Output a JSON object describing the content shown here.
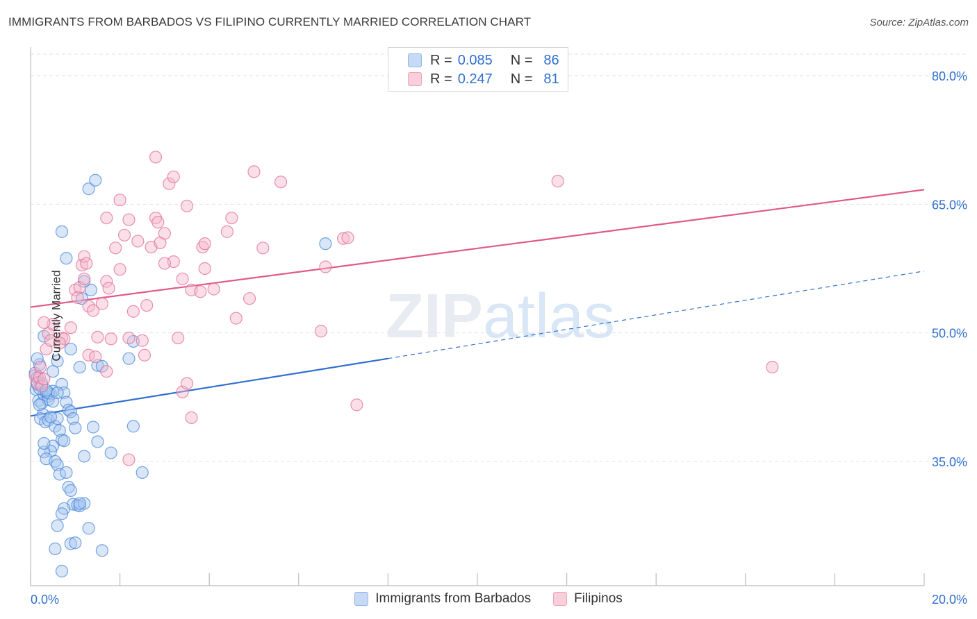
{
  "title": "IMMIGRANTS FROM BARBADOS VS FILIPINO CURRENTLY MARRIED CORRELATION CHART",
  "source": "Source: ZipAtlas.com",
  "watermark": "ZIPatlas",
  "legend_top": {
    "rows": [
      {
        "r_label": "R =",
        "r_value": "0.085",
        "n_label": "N =",
        "n_value": "86",
        "color": "#a9c8f0"
      },
      {
        "r_label": "R =",
        "r_value": "0.247",
        "n_label": "N =",
        "n_value": "81",
        "color": "#f5b8cb"
      }
    ]
  },
  "legend_bottom": [
    {
      "label": "Immigrants from Barbados",
      "color": "#a9c8f0"
    },
    {
      "label": "Filipinos",
      "color": "#f5b8cb"
    }
  ],
  "chart_data": {
    "type": "scatter",
    "title": "IMMIGRANTS FROM BARBADOS VS FILIPINO CURRENTLY MARRIED CORRELATION CHART",
    "xlabel": "",
    "ylabel": "Currently Married",
    "xlim": [
      0,
      20
    ],
    "ylim": [
      20.5,
      83
    ],
    "x_ticks": [
      "0.0%",
      "20.0%"
    ],
    "y_ticks": [
      {
        "value": 35,
        "label": "35.0%"
      },
      {
        "value": 50,
        "label": "50.0%"
      },
      {
        "value": 65,
        "label": "65.0%"
      },
      {
        "value": 80,
        "label": "80.0%"
      }
    ],
    "grid": true,
    "series": [
      {
        "name": "Immigrants from Barbados",
        "color": "#4a87d8",
        "fill": "#a9c8f0",
        "r": 0.085,
        "n": 86,
        "trend": {
          "x0": 0.0,
          "y0": 40.3,
          "x1": 8.0,
          "y1": 47.0,
          "dash_x1": 20.0,
          "dash_y1": 57.2,
          "color": "#2f6fd0"
        },
        "points": [
          [
            0.1,
            45.3
          ],
          [
            0.15,
            44.8
          ],
          [
            0.2,
            46.3
          ],
          [
            0.12,
            43.4
          ],
          [
            0.18,
            42.1
          ],
          [
            0.25,
            41.8
          ],
          [
            0.3,
            42.8
          ],
          [
            0.35,
            43.0
          ],
          [
            0.4,
            42.6
          ],
          [
            0.45,
            42.9
          ],
          [
            0.5,
            43.2
          ],
          [
            0.28,
            40.5
          ],
          [
            0.22,
            40.0
          ],
          [
            0.33,
            39.6
          ],
          [
            0.4,
            39.8
          ],
          [
            0.55,
            39.1
          ],
          [
            0.6,
            40.0
          ],
          [
            0.7,
            44.0
          ],
          [
            0.75,
            43.0
          ],
          [
            0.8,
            41.9
          ],
          [
            0.85,
            41.0
          ],
          [
            0.9,
            40.8
          ],
          [
            0.95,
            40.0
          ],
          [
            1.0,
            38.9
          ],
          [
            0.65,
            38.6
          ],
          [
            0.7,
            37.5
          ],
          [
            0.75,
            37.4
          ],
          [
            0.5,
            36.8
          ],
          [
            0.45,
            36.2
          ],
          [
            0.3,
            36.1
          ],
          [
            0.35,
            35.3
          ],
          [
            0.55,
            35.0
          ],
          [
            0.6,
            34.6
          ],
          [
            0.65,
            33.5
          ],
          [
            0.8,
            33.7
          ],
          [
            0.85,
            32.0
          ],
          [
            0.9,
            31.6
          ],
          [
            0.95,
            30.0
          ],
          [
            1.05,
            29.9
          ],
          [
            1.1,
            29.8
          ],
          [
            1.2,
            30.1
          ],
          [
            0.75,
            29.5
          ],
          [
            0.7,
            28.9
          ],
          [
            0.6,
            27.5
          ],
          [
            1.3,
            27.2
          ],
          [
            0.9,
            25.4
          ],
          [
            1.0,
            25.5
          ],
          [
            0.55,
            24.8
          ],
          [
            1.6,
            24.6
          ],
          [
            0.7,
            22.2
          ],
          [
            0.3,
            37.1
          ],
          [
            0.4,
            42.2
          ],
          [
            0.3,
            49.6
          ],
          [
            0.5,
            45.5
          ],
          [
            0.6,
            46.7
          ],
          [
            1.1,
            46.0
          ],
          [
            0.9,
            48.1
          ],
          [
            1.5,
            46.2
          ],
          [
            1.6,
            46.1
          ],
          [
            2.2,
            47.0
          ],
          [
            2.3,
            49.0
          ],
          [
            1.35,
            55.0
          ],
          [
            1.2,
            56.0
          ],
          [
            1.15,
            54.0
          ],
          [
            0.8,
            58.7
          ],
          [
            0.7,
            61.8
          ],
          [
            1.3,
            66.8
          ],
          [
            1.45,
            67.8
          ],
          [
            6.6,
            60.4
          ],
          [
            0.15,
            47.0
          ],
          [
            0.2,
            43.5
          ],
          [
            0.25,
            44.1
          ],
          [
            0.4,
            43.0
          ],
          [
            0.35,
            43.3
          ],
          [
            0.2,
            41.6
          ],
          [
            0.5,
            42.0
          ],
          [
            1.4,
            39.0
          ],
          [
            1.5,
            37.3
          ],
          [
            1.8,
            36.0
          ],
          [
            2.3,
            39.1
          ],
          [
            2.5,
            33.7
          ],
          [
            1.2,
            35.6
          ],
          [
            1.1,
            30.1
          ],
          [
            0.15,
            44.0
          ],
          [
            0.45,
            40.2
          ],
          [
            0.6,
            43.0
          ]
        ]
      },
      {
        "name": "Filipinos",
        "color": "#e26d97",
        "fill": "#f5b8cb",
        "r": 0.247,
        "n": 81,
        "trend": {
          "x0": 0.0,
          "y0": 53.0,
          "x1": 20.0,
          "y1": 66.7,
          "color": "#e0598a"
        },
        "points": [
          [
            0.1,
            45.0
          ],
          [
            0.15,
            44.2
          ],
          [
            0.2,
            44.8
          ],
          [
            0.25,
            43.8
          ],
          [
            0.3,
            44.6
          ],
          [
            0.22,
            46.0
          ],
          [
            0.35,
            48.1
          ],
          [
            0.4,
            49.9
          ],
          [
            0.5,
            51.0
          ],
          [
            0.3,
            51.2
          ],
          [
            0.45,
            49.1
          ],
          [
            0.7,
            49.4
          ],
          [
            0.75,
            49.3
          ],
          [
            0.65,
            48.8
          ],
          [
            0.9,
            50.6
          ],
          [
            1.0,
            55.0
          ],
          [
            1.1,
            55.3
          ],
          [
            1.2,
            56.3
          ],
          [
            1.05,
            54.1
          ],
          [
            1.3,
            53.1
          ],
          [
            1.15,
            57.9
          ],
          [
            1.2,
            58.9
          ],
          [
            1.25,
            58.1
          ],
          [
            1.4,
            52.6
          ],
          [
            1.6,
            53.4
          ],
          [
            1.7,
            56.0
          ],
          [
            1.75,
            55.2
          ],
          [
            1.5,
            49.5
          ],
          [
            1.8,
            49.3
          ],
          [
            1.7,
            45.5
          ],
          [
            1.3,
            47.4
          ],
          [
            1.45,
            47.2
          ],
          [
            2.2,
            49.4
          ],
          [
            2.0,
            57.4
          ],
          [
            2.3,
            52.5
          ],
          [
            2.5,
            49.1
          ],
          [
            2.6,
            53.2
          ],
          [
            2.55,
            47.4
          ],
          [
            1.9,
            59.9
          ],
          [
            2.1,
            61.4
          ],
          [
            2.0,
            65.5
          ],
          [
            1.7,
            63.4
          ],
          [
            2.2,
            63.2
          ],
          [
            2.4,
            60.7
          ],
          [
            2.8,
            63.4
          ],
          [
            2.85,
            62.9
          ],
          [
            2.7,
            60.0
          ],
          [
            2.9,
            60.5
          ],
          [
            3.0,
            61.6
          ],
          [
            3.2,
            58.3
          ],
          [
            3.0,
            58.1
          ],
          [
            3.4,
            56.3
          ],
          [
            3.5,
            64.8
          ],
          [
            3.6,
            55.0
          ],
          [
            3.8,
            54.8
          ],
          [
            3.9,
            57.5
          ],
          [
            3.85,
            60.0
          ],
          [
            4.1,
            55.1
          ],
          [
            4.4,
            61.8
          ],
          [
            4.5,
            63.4
          ],
          [
            4.6,
            51.7
          ],
          [
            4.9,
            54.0
          ],
          [
            5.0,
            68.8
          ],
          [
            5.2,
            59.9
          ],
          [
            5.6,
            67.6
          ],
          [
            6.5,
            50.2
          ],
          [
            6.6,
            57.7
          ],
          [
            7.0,
            61.0
          ],
          [
            7.1,
            61.1
          ],
          [
            7.3,
            41.6
          ],
          [
            3.4,
            43.1
          ],
          [
            3.9,
            60.4
          ],
          [
            3.6,
            40.1
          ],
          [
            3.5,
            44.1
          ],
          [
            3.3,
            49.4
          ],
          [
            2.2,
            35.2
          ],
          [
            2.8,
            70.5
          ],
          [
            3.1,
            67.4
          ],
          [
            3.2,
            68.2
          ],
          [
            11.8,
            67.7
          ],
          [
            16.6,
            46.0
          ]
        ]
      }
    ]
  }
}
